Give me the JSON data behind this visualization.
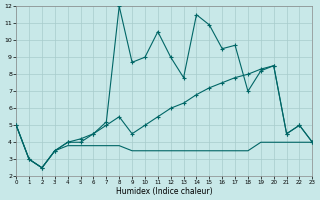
{
  "xlabel": "Humidex (Indice chaleur)",
  "bg_color": "#c8e8e8",
  "grid_color": "#a8cccc",
  "line_color": "#006666",
  "xlim": [
    0,
    23
  ],
  "ylim": [
    2,
    12
  ],
  "x_ticks": [
    0,
    1,
    2,
    3,
    4,
    5,
    6,
    7,
    8,
    9,
    10,
    11,
    12,
    13,
    14,
    15,
    16,
    17,
    18,
    19,
    20,
    21,
    22,
    23
  ],
  "y_ticks": [
    2,
    3,
    4,
    5,
    6,
    7,
    8,
    9,
    10,
    11,
    12
  ],
  "line1_x": [
    0,
    1,
    2,
    3,
    4,
    5,
    6,
    7,
    8,
    9,
    10,
    11,
    12,
    13,
    14,
    15,
    16,
    17,
    18,
    19,
    20,
    21,
    22,
    23
  ],
  "line1_y": [
    5.0,
    3.0,
    2.5,
    3.5,
    4.0,
    4.0,
    4.5,
    5.2,
    12.0,
    8.7,
    9.0,
    10.5,
    9.0,
    7.8,
    11.5,
    10.9,
    9.5,
    9.7,
    7.0,
    8.2,
    8.5,
    4.5,
    5.0,
    4.0
  ],
  "line2_x": [
    0,
    1,
    2,
    3,
    4,
    5,
    6,
    7,
    8,
    9,
    10,
    11,
    12,
    13,
    14,
    15,
    16,
    17,
    18,
    19,
    20,
    21,
    22,
    23
  ],
  "line2_y": [
    5.0,
    3.0,
    2.5,
    3.5,
    4.0,
    4.2,
    4.5,
    5.0,
    5.5,
    4.5,
    5.0,
    5.5,
    6.0,
    6.3,
    6.8,
    7.2,
    7.5,
    7.8,
    8.0,
    8.3,
    8.5,
    4.5,
    5.0,
    4.0
  ],
  "line3_x": [
    0,
    1,
    2,
    3,
    4,
    5,
    6,
    7,
    8,
    9,
    10,
    11,
    12,
    13,
    14,
    15,
    16,
    17,
    18,
    19,
    20,
    21,
    22,
    23
  ],
  "line3_y": [
    5.0,
    3.0,
    2.5,
    3.5,
    3.8,
    3.8,
    3.8,
    3.8,
    3.8,
    3.5,
    3.5,
    3.5,
    3.5,
    3.5,
    3.5,
    3.5,
    3.5,
    3.5,
    3.5,
    4.0,
    4.0,
    4.0,
    4.0,
    4.0
  ]
}
